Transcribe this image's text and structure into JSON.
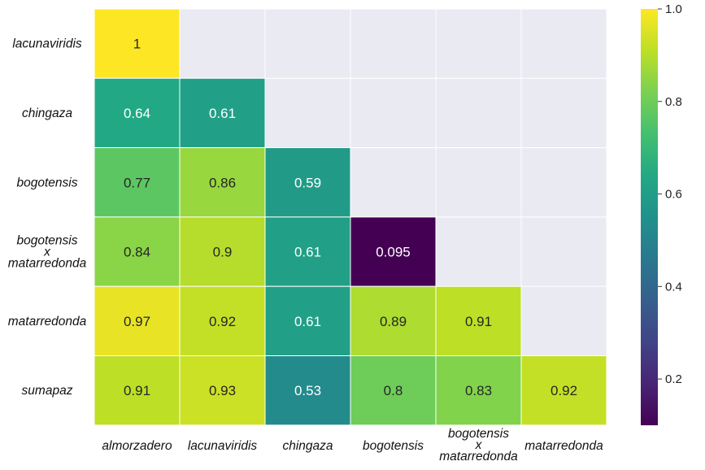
{
  "chart_data": {
    "type": "heatmap",
    "title": "",
    "xlabel": "",
    "ylabel": "",
    "layout": "lower-triangular",
    "colormap": "viridis",
    "empty_cell_color": "#eaeaf2",
    "grid": "white cell borders",
    "colorbar_position": "right",
    "colorbar_range": [
      0.1,
      1.0
    ],
    "colorbar_ticks": [
      "0.2",
      "0.4",
      "0.6",
      "0.8",
      "1.0"
    ],
    "columns": [
      [
        "almorzadero"
      ],
      [
        "lacunaviridis"
      ],
      [
        "chingaza"
      ],
      [
        "bogotensis"
      ],
      [
        "bogotensis",
        "x",
        "matarredonda"
      ],
      [
        "matarredonda"
      ]
    ],
    "rows": [
      [
        "lacunaviridis"
      ],
      [
        "chingaza"
      ],
      [
        "bogotensis"
      ],
      [
        "bogotensis",
        "x",
        "matarredonda"
      ],
      [
        "matarredonda"
      ],
      [
        "sumapaz"
      ]
    ],
    "values": [
      [
        1,
        null,
        null,
        null,
        null,
        null
      ],
      [
        0.64,
        0.61,
        null,
        null,
        null,
        null
      ],
      [
        0.77,
        0.86,
        0.59,
        null,
        null,
        null
      ],
      [
        0.84,
        0.9,
        0.61,
        0.095,
        null,
        null
      ],
      [
        0.97,
        0.92,
        0.61,
        0.89,
        0.91,
        null
      ],
      [
        0.91,
        0.93,
        0.53,
        0.8,
        0.83,
        0.92
      ]
    ],
    "labels": [
      [
        "1",
        null,
        null,
        null,
        null,
        null
      ],
      [
        "0.64",
        "0.61",
        null,
        null,
        null,
        null
      ],
      [
        "0.77",
        "0.86",
        "0.59",
        null,
        null,
        null
      ],
      [
        "0.84",
        "0.9",
        "0.61",
        "0.095",
        null,
        null
      ],
      [
        "0.97",
        "0.92",
        "0.61",
        "0.89",
        "0.91",
        null
      ],
      [
        "0.91",
        "0.93",
        "0.53",
        "0.8",
        "0.83",
        "0.92"
      ]
    ]
  }
}
